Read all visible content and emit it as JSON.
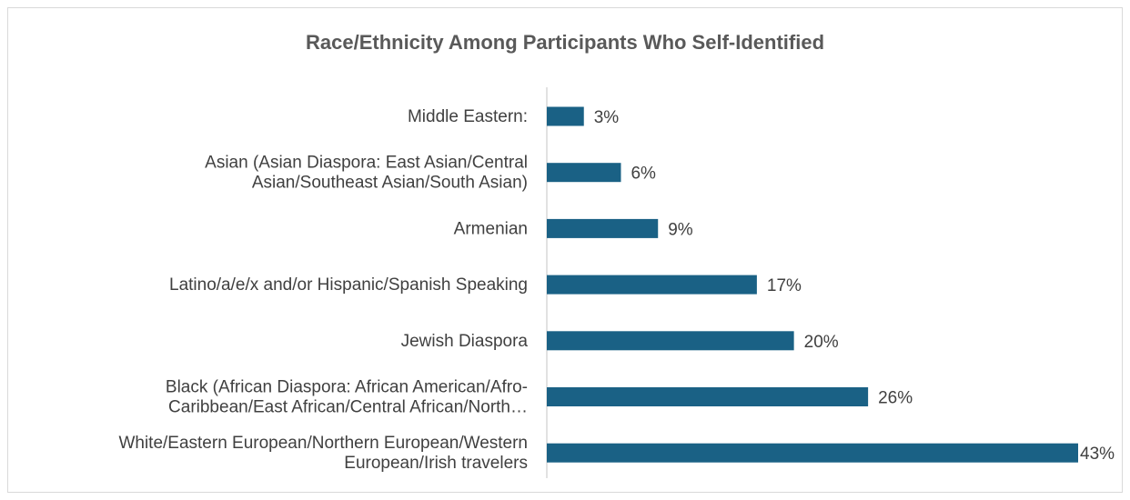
{
  "chart_data": {
    "type": "bar",
    "orientation": "horizontal",
    "title": "Race/Ethnicity Among Participants Who Self-Identified",
    "categories": [
      [
        "Middle Eastern:"
      ],
      [
        "Asian (Asian Diaspora: East Asian/Central",
        "Asian/Southeast Asian/South Asian)"
      ],
      [
        "Armenian"
      ],
      [
        "Latino/a/e/x and/or Hispanic/Spanish Speaking"
      ],
      [
        "Jewish Diaspora"
      ],
      [
        "Black (African Diaspora: African American/Afro-",
        "Caribbean/East African/Central African/North…"
      ],
      [
        "White/Eastern European/Northern European/Western",
        "European/Irish travelers"
      ]
    ],
    "values": [
      3,
      6,
      9,
      17,
      20,
      26,
      43
    ],
    "value_labels": [
      "3%",
      "6%",
      "9%",
      "17%",
      "20%",
      "26%",
      "43%"
    ],
    "unit": "%",
    "xlim": [
      0,
      43
    ],
    "grid": false,
    "legend": "none",
    "bar_color": "#1a6185",
    "axis_color": "#d9d9d9"
  }
}
